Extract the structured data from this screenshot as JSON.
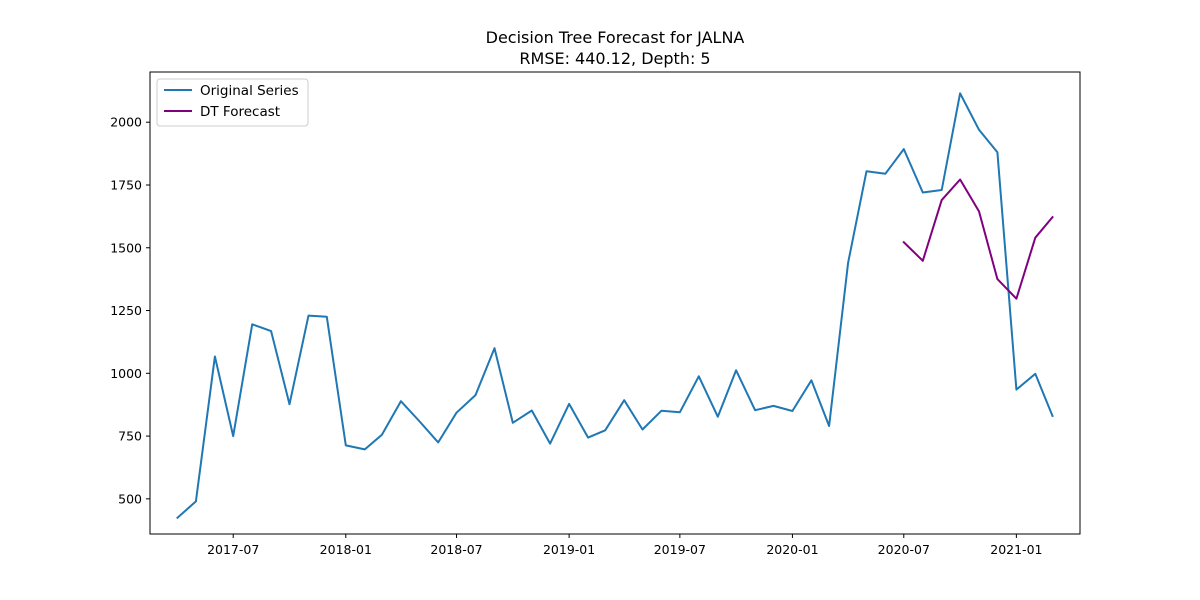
{
  "chart_data": {
    "type": "line",
    "title": "Decision Tree Forecast for JALNA",
    "subtitle": "RMSE: 440.12, Depth: 5",
    "xlabel": "",
    "ylabel": "",
    "xlim": [
      "2017-02-15",
      "2021-04-15"
    ],
    "ylim": [
      360,
      2200
    ],
    "grid": false,
    "legend_position": "upper-left",
    "x_ticks": [
      "2017-07",
      "2018-01",
      "2018-07",
      "2019-01",
      "2019-07",
      "2020-01",
      "2020-07",
      "2021-01"
    ],
    "y_ticks": [
      500,
      750,
      1000,
      1250,
      1500,
      1750,
      2000
    ],
    "series": [
      {
        "name": "Original Series",
        "color": "#1f77b4",
        "x": [
          "2017-04",
          "2017-05",
          "2017-06",
          "2017-07",
          "2017-08",
          "2017-09",
          "2017-10",
          "2017-11",
          "2017-12",
          "2018-01",
          "2018-02",
          "2018-03",
          "2018-04",
          "2018-05",
          "2018-06",
          "2018-07",
          "2018-08",
          "2018-09",
          "2018-10",
          "2018-11",
          "2018-12",
          "2019-01",
          "2019-02",
          "2019-03",
          "2019-04",
          "2019-05",
          "2019-06",
          "2019-07",
          "2019-08",
          "2019-09",
          "2019-10",
          "2019-11",
          "2019-12",
          "2020-01",
          "2020-02",
          "2020-03",
          "2020-04",
          "2020-05",
          "2020-06",
          "2020-07",
          "2020-08",
          "2020-09",
          "2020-10",
          "2020-11",
          "2020-12",
          "2021-01",
          "2021-02",
          "2021-03"
        ],
        "values": [
          425,
          490,
          1067,
          750,
          1195,
          1168,
          877,
          1230,
          1225,
          713,
          697,
          755,
          889,
          810,
          725,
          843,
          913,
          1100,
          803,
          852,
          720,
          878,
          744,
          773,
          893,
          776,
          851,
          845,
          988,
          827,
          1012,
          853,
          870,
          850,
          972,
          790,
          1440,
          1805,
          1795,
          1893,
          1720,
          1730,
          2115,
          1970,
          1880,
          935,
          998,
          830
        ]
      },
      {
        "name": "DT Forecast",
        "color": "#800080",
        "x": [
          "2020-07",
          "2020-08",
          "2020-09",
          "2020-10",
          "2020-11",
          "2020-12",
          "2021-01",
          "2021-02",
          "2021-03"
        ],
        "values": [
          1522,
          1448,
          1690,
          1772,
          1645,
          1375,
          1297,
          1540,
          1622
        ]
      }
    ]
  }
}
